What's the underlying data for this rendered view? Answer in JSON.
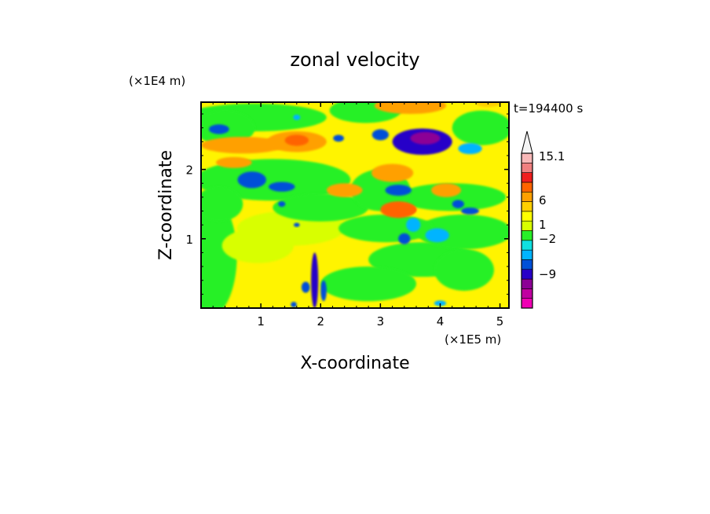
{
  "chart_data": {
    "type": "heatmap",
    "title": "zonal velocity",
    "xlabel": "X-coordinate",
    "ylabel": "Z-coordinate",
    "x_unit": "(×1E5 m)",
    "y_unit": "(×1E4 m)",
    "time_label": "t=194400 s",
    "xlim": [
      0,
      5.15
    ],
    "ylim": [
      0,
      2.97
    ],
    "x_ticks": [
      1,
      2,
      3,
      4,
      5
    ],
    "y_ticks": [
      1,
      2
    ],
    "colorbar": {
      "colors": [
        "#f000b4",
        "#c000a0",
        "#8c0096",
        "#2800c8",
        "#0050d8",
        "#00b4ff",
        "#10e0e0",
        "#28f028",
        "#d8ff00",
        "#ffff00",
        "#ffd000",
        "#ffa000",
        "#ff6400",
        "#f01e1e",
        "#f08080",
        "#f8b8b8"
      ],
      "top_triangle_color": "#f4f4f4",
      "tick_labels": [
        {
          "label": "15.1",
          "boundary": 15.1
        },
        {
          "label": "6",
          "boundary": 6
        },
        {
          "label": "1",
          "boundary": 1
        },
        {
          "label": "−2",
          "boundary": -2
        },
        {
          "label": "−9",
          "boundary": -9
        }
      ]
    },
    "background_color": "#fff400",
    "features": [
      {
        "x": 0.95,
        "y": 0.9,
        "rx": 0.6,
        "ry": 0.25,
        "v": -0.3
      },
      {
        "x": 1.5,
        "y": 1.15,
        "rx": 0.9,
        "ry": 0.25,
        "v": -0.3
      },
      {
        "x": 0.1,
        "y": 0.75,
        "rx": 0.5,
        "ry": 0.9,
        "v": -1.5
      },
      {
        "x": 2.8,
        "y": 0.35,
        "rx": 0.8,
        "ry": 0.25,
        "v": -1
      },
      {
        "x": 3.7,
        "y": 0.7,
        "rx": 0.9,
        "ry": 0.25,
        "v": -1
      },
      {
        "x": 4.4,
        "y": 0.55,
        "rx": 0.5,
        "ry": 0.3,
        "v": -1.5
      },
      {
        "x": 3.1,
        "y": 1.15,
        "rx": 0.8,
        "ry": 0.2,
        "v": -1.5
      },
      {
        "x": 4.4,
        "y": 1.1,
        "rx": 0.8,
        "ry": 0.25,
        "v": -1
      },
      {
        "x": 1.2,
        "y": 1.85,
        "rx": 1.3,
        "ry": 0.3,
        "v": -1.2
      },
      {
        "x": 0.3,
        "y": 1.5,
        "rx": 0.4,
        "ry": 0.25,
        "v": -0.8
      },
      {
        "x": 2.0,
        "y": 1.45,
        "rx": 0.8,
        "ry": 0.2,
        "v": -0.9
      },
      {
        "x": 4.2,
        "y": 1.6,
        "rx": 0.9,
        "ry": 0.2,
        "v": -1.1
      },
      {
        "x": 3.0,
        "y": 1.7,
        "rx": 0.5,
        "ry": 0.3,
        "v": -1.2
      },
      {
        "x": 0.9,
        "y": 2.75,
        "rx": 1.2,
        "ry": 0.2,
        "v": -1.5
      },
      {
        "x": 0.4,
        "y": 2.6,
        "rx": 0.5,
        "ry": 0.25,
        "v": -1.4
      },
      {
        "x": 4.7,
        "y": 2.6,
        "rx": 0.5,
        "ry": 0.25,
        "v": -0.9
      },
      {
        "x": 2.75,
        "y": 2.85,
        "rx": 0.6,
        "ry": 0.18,
        "v": -0.6
      },
      {
        "x": 0.3,
        "y": 2.58,
        "rx": 0.17,
        "ry": 0.07,
        "v": -7
      },
      {
        "x": 1.6,
        "y": 2.75,
        "rx": 0.06,
        "ry": 0.04,
        "v": -4
      },
      {
        "x": 0.85,
        "y": 1.85,
        "rx": 0.24,
        "ry": 0.12,
        "v": -7
      },
      {
        "x": 1.35,
        "y": 1.75,
        "rx": 0.22,
        "ry": 0.07,
        "v": -6
      },
      {
        "x": 3.7,
        "y": 2.4,
        "rx": 0.5,
        "ry": 0.19,
        "v": -9
      },
      {
        "x": 3.75,
        "y": 2.45,
        "rx": 0.25,
        "ry": 0.09,
        "v": -13
      },
      {
        "x": 3.0,
        "y": 2.5,
        "rx": 0.14,
        "ry": 0.08,
        "v": -6
      },
      {
        "x": 2.3,
        "y": 2.45,
        "rx": 0.09,
        "ry": 0.05,
        "v": -5
      },
      {
        "x": 4.5,
        "y": 2.3,
        "rx": 0.2,
        "ry": 0.08,
        "v": -3.2
      },
      {
        "x": 3.3,
        "y": 1.7,
        "rx": 0.22,
        "ry": 0.08,
        "v": -7
      },
      {
        "x": 4.5,
        "y": 1.4,
        "rx": 0.15,
        "ry": 0.05,
        "v": -5
      },
      {
        "x": 3.55,
        "y": 1.2,
        "rx": 0.12,
        "ry": 0.1,
        "v": -4
      },
      {
        "x": 3.95,
        "y": 1.05,
        "rx": 0.2,
        "ry": 0.1,
        "v": -3.5
      },
      {
        "x": 3.4,
        "y": 1.0,
        "rx": 0.1,
        "ry": 0.08,
        "v": -5
      },
      {
        "x": 1.35,
        "y": 1.5,
        "rx": 0.06,
        "ry": 0.04,
        "v": -6
      },
      {
        "x": 1.6,
        "y": 1.2,
        "rx": 0.05,
        "ry": 0.03,
        "v": -5
      },
      {
        "x": 4.3,
        "y": 1.5,
        "rx": 0.1,
        "ry": 0.06,
        "v": -7
      },
      {
        "x": 1.9,
        "y": 0.4,
        "rx": 0.06,
        "ry": 0.4,
        "v": -8
      },
      {
        "x": 1.75,
        "y": 0.3,
        "rx": 0.07,
        "ry": 0.08,
        "v": -6
      },
      {
        "x": 2.05,
        "y": 0.25,
        "rx": 0.05,
        "ry": 0.15,
        "v": -7
      },
      {
        "x": 1.55,
        "y": 0.05,
        "rx": 0.05,
        "ry": 0.04,
        "v": -5
      },
      {
        "x": 4.0,
        "y": 0.07,
        "rx": 0.1,
        "ry": 0.04,
        "v": -4
      },
      {
        "x": 1.6,
        "y": 2.4,
        "rx": 0.5,
        "ry": 0.15,
        "v": 3
      },
      {
        "x": 1.6,
        "y": 2.42,
        "rx": 0.2,
        "ry": 0.08,
        "v": 4.5
      },
      {
        "x": 0.7,
        "y": 2.35,
        "rx": 0.7,
        "ry": 0.12,
        "v": 2.5
      },
      {
        "x": 3.5,
        "y": 2.92,
        "rx": 0.6,
        "ry": 0.12,
        "v": 3
      },
      {
        "x": 3.2,
        "y": 1.95,
        "rx": 0.35,
        "ry": 0.13,
        "v": 3
      },
      {
        "x": 4.1,
        "y": 1.7,
        "rx": 0.25,
        "ry": 0.1,
        "v": 2.5
      },
      {
        "x": 3.3,
        "y": 1.42,
        "rx": 0.3,
        "ry": 0.12,
        "v": 4.5
      },
      {
        "x": 3.45,
        "y": 1.42,
        "rx": 0.15,
        "ry": 0.06,
        "v": 5.5
      },
      {
        "x": 2.4,
        "y": 1.7,
        "rx": 0.3,
        "ry": 0.1,
        "v": 2.5
      },
      {
        "x": 0.55,
        "y": 2.1,
        "rx": 0.3,
        "ry": 0.08,
        "v": 2.5
      },
      {
        "x": 4.8,
        "y": 2.95,
        "rx": 0.2,
        "ry": 0.05,
        "v": 2
      }
    ]
  }
}
